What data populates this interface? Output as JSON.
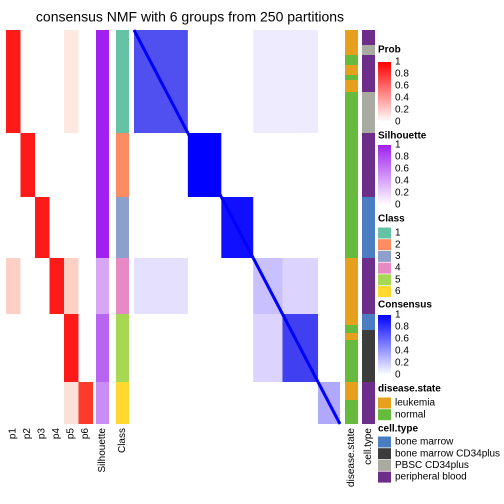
{
  "title": "consensus NMF with 6 groups from 250 partitions",
  "columns": [
    "p1",
    "p2",
    "p3",
    "p4",
    "p5",
    "p6",
    "Silhouette",
    "Class",
    "disease.state",
    "cell.type"
  ],
  "legends": {
    "prob": {
      "title": "Prob",
      "ticks": [
        "1",
        "0.8",
        "0.6",
        "0.4",
        "0.2",
        "0"
      ],
      "colors": [
        "#ffffff",
        "#ff0000"
      ]
    },
    "silhouette": {
      "title": "Silhouette",
      "ticks": [
        "1",
        "0.8",
        "0.6",
        "0.4",
        "0.2",
        "0"
      ],
      "colors": [
        "#ffffff",
        "#a020f0"
      ]
    },
    "class": {
      "title": "Class",
      "items": [
        {
          "label": "1",
          "color": "#66c2a5"
        },
        {
          "label": "2",
          "color": "#fc8d62"
        },
        {
          "label": "3",
          "color": "#8da0cb"
        },
        {
          "label": "4",
          "color": "#e78ac3"
        },
        {
          "label": "5",
          "color": "#a6d854"
        },
        {
          "label": "6",
          "color": "#ffd92f"
        }
      ]
    },
    "consensus": {
      "title": "Consensus",
      "ticks": [
        "1",
        "0.8",
        "0.6",
        "0.4",
        "0.2",
        "0"
      ],
      "colors": [
        "#ffffff",
        "#0000ff"
      ]
    },
    "disease": {
      "title": "disease.state",
      "items": [
        {
          "label": "leukemia",
          "color": "#e6a01e"
        },
        {
          "label": "normal",
          "color": "#66bb3c"
        }
      ]
    },
    "cell": {
      "title": "cell.type",
      "items": [
        {
          "label": "bone marrow",
          "color": "#4a7dc2"
        },
        {
          "label": "bone marrow CD34plus",
          "color": "#3c3c3c"
        },
        {
          "label": "PBSC CD34plus",
          "color": "#a9aba0"
        },
        {
          "label": "peripheral blood",
          "color": "#6d2e8a"
        }
      ]
    }
  }
}
